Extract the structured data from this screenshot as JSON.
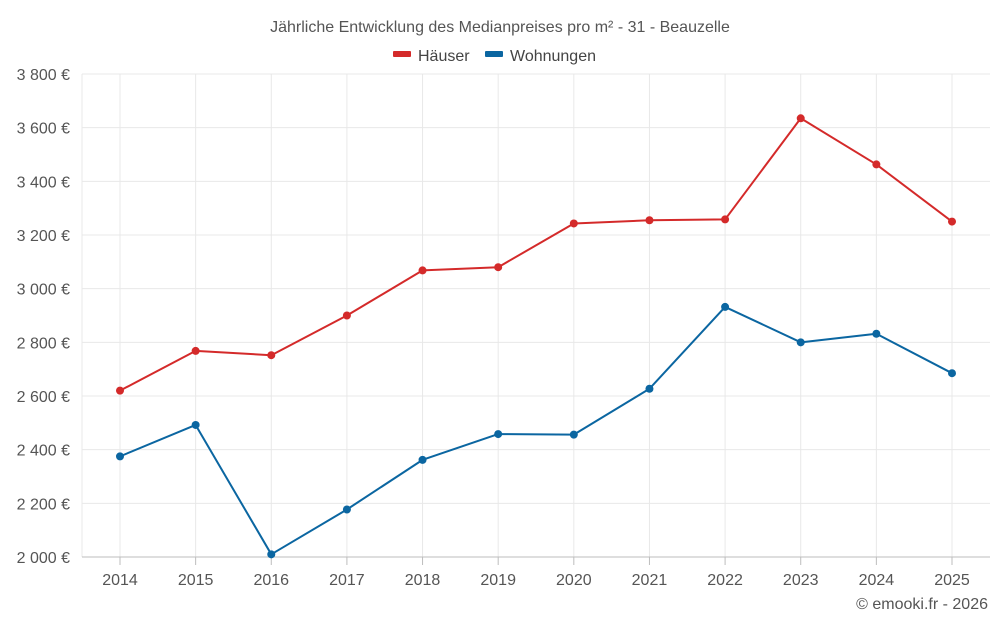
{
  "chart_data": {
    "type": "line",
    "title": "Jährliche Entwicklung des Medianpreises pro m² - 31 - Beauzelle",
    "categories": [
      "2014",
      "2015",
      "2016",
      "2017",
      "2018",
      "2019",
      "2020",
      "2021",
      "2022",
      "2023",
      "2024",
      "2025"
    ],
    "series": [
      {
        "name": "Häuser",
        "color": "#d42a2a",
        "values": [
          2620,
          2768,
          2752,
          2900,
          3068,
          3080,
          3243,
          3255,
          3258,
          3635,
          3463,
          3250
        ]
      },
      {
        "name": "Wohnungen",
        "color": "#0b66a1",
        "values": [
          2375,
          2492,
          2010,
          2177,
          2362,
          2458,
          2456,
          2627,
          2932,
          2800,
          2832,
          2685
        ]
      }
    ],
    "ylim": [
      2000,
      3800
    ],
    "yticks": [
      2000,
      2200,
      2400,
      2600,
      2800,
      3000,
      3200,
      3400,
      3600,
      3800
    ],
    "ytick_labels": [
      "2 000 €",
      "2 200 €",
      "2 400 €",
      "2 600 €",
      "2 800 €",
      "3 000 €",
      "3 200 €",
      "3 400 €",
      "3 600 €",
      "3 800 €"
    ],
    "xlabel": "",
    "ylabel": "",
    "grid": true,
    "legend_position": "top-center"
  },
  "credit": "© emooki.fr - 2026"
}
